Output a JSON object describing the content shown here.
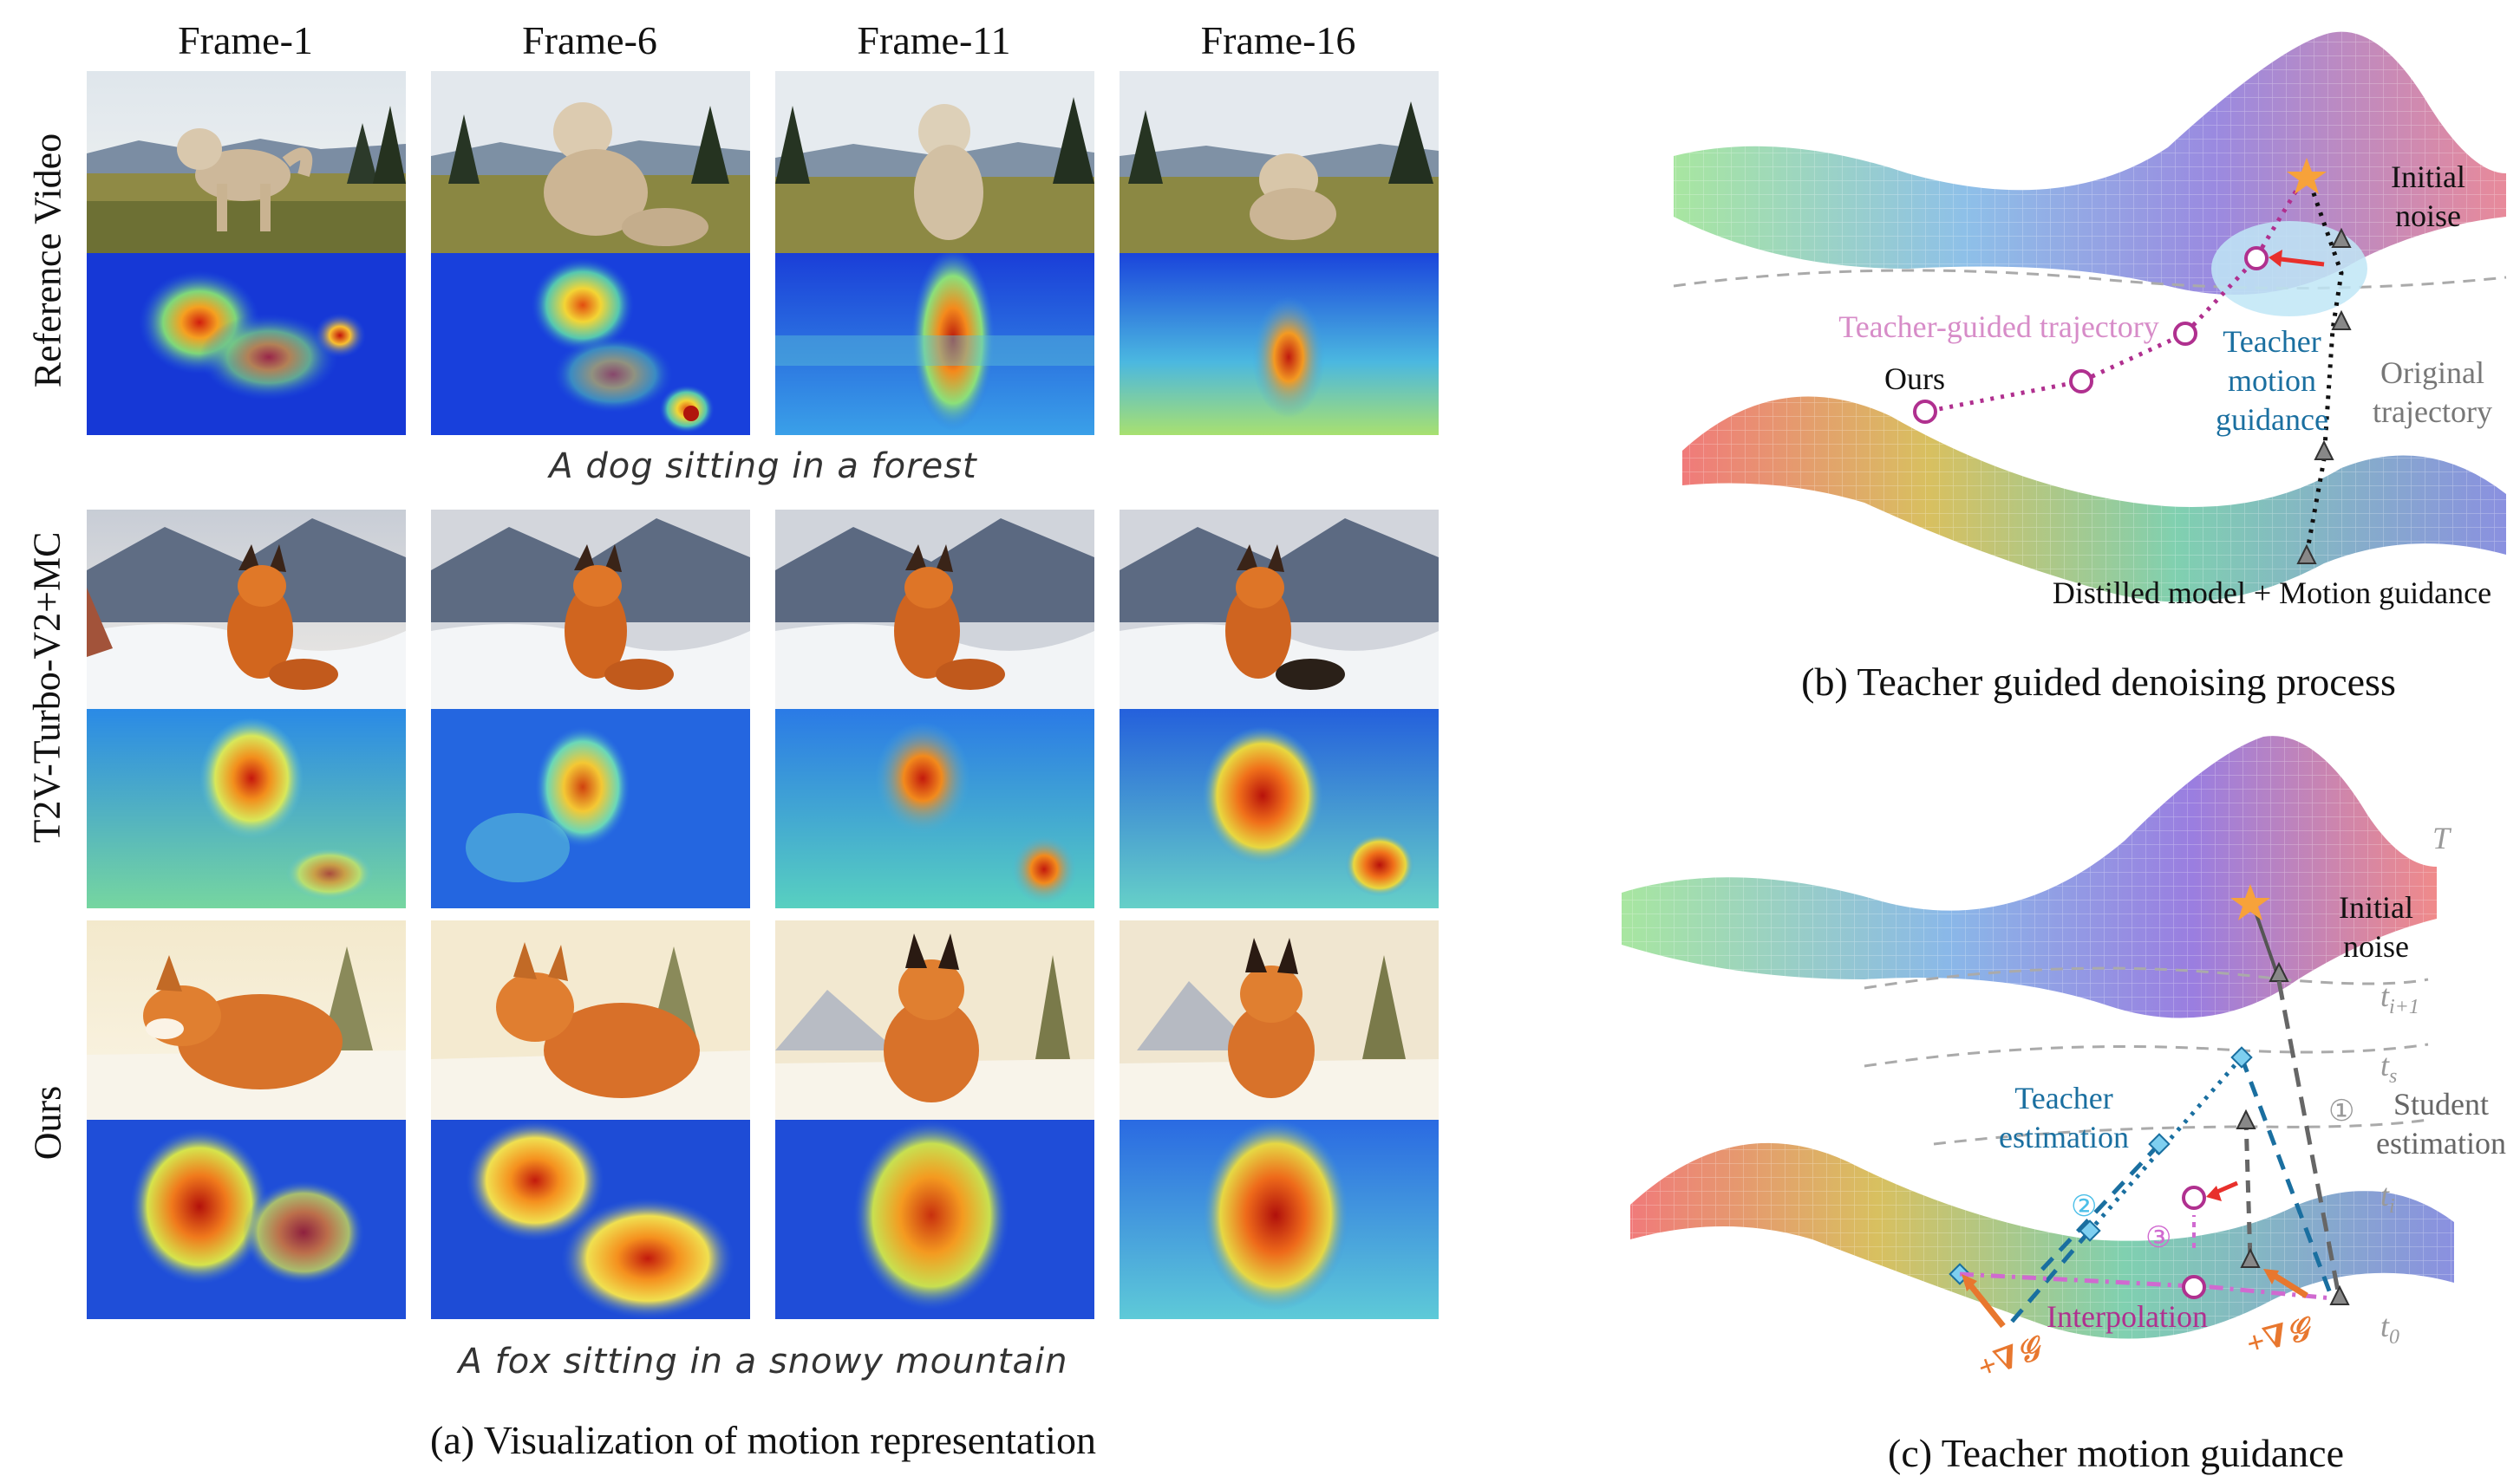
{
  "panel_a": {
    "frame_titles": [
      "Frame-1",
      "Frame-6",
      "Frame-11",
      "Frame-16"
    ],
    "rows": [
      {
        "label": "Reference Video",
        "caption": "A dog sitting in a forest"
      },
      {
        "label": "T2V-Turbo-V2+MC",
        "caption": ""
      },
      {
        "label": "Ours",
        "caption": "A fox sitting in a snowy mountain"
      }
    ],
    "caption": "(a) Visualization of motion representation"
  },
  "panel_b": {
    "initial_noise": "Initial\nnoise",
    "teacher_guided_trajectory": "Teacher-guided trajectory",
    "teacher_motion_guidance": "Teacher\nmotion\nguidance",
    "original_trajectory": "Original\ntrajectory",
    "ours": "Ours",
    "distilled": "Distilled model + Motion guidance",
    "caption": "(b) Teacher guided denoising process"
  },
  "panel_c": {
    "T": "T",
    "initial_noise": "Initial\nnoise",
    "t_i_plus_1": "t",
    "t_i_plus_1_sub": "i+1",
    "t_s": "t",
    "t_s_sub": "s",
    "t_i": "t",
    "t_i_sub": "i",
    "t_0": "t",
    "t_0_sub": "0",
    "teacher_estimation": "Teacher\nestimation",
    "student_estimation": "Student\nestimation",
    "step1": "①",
    "step2": "②",
    "step3": "③",
    "interpolation": "Interpolation",
    "grad_left": "+∇𝒢",
    "grad_right": "+∇𝒢",
    "caption": "(c) Teacher motion guidance"
  },
  "colors": {
    "teacher_path": "#b0308f",
    "original_path": "#111111",
    "teacher_est": "#1a6fa0",
    "student_est": "#555555",
    "guidance_arrow": "#e8302c",
    "grad_arrow": "#e8772e",
    "star": "#f7a23a",
    "ellipse": "#bfe6f6"
  }
}
